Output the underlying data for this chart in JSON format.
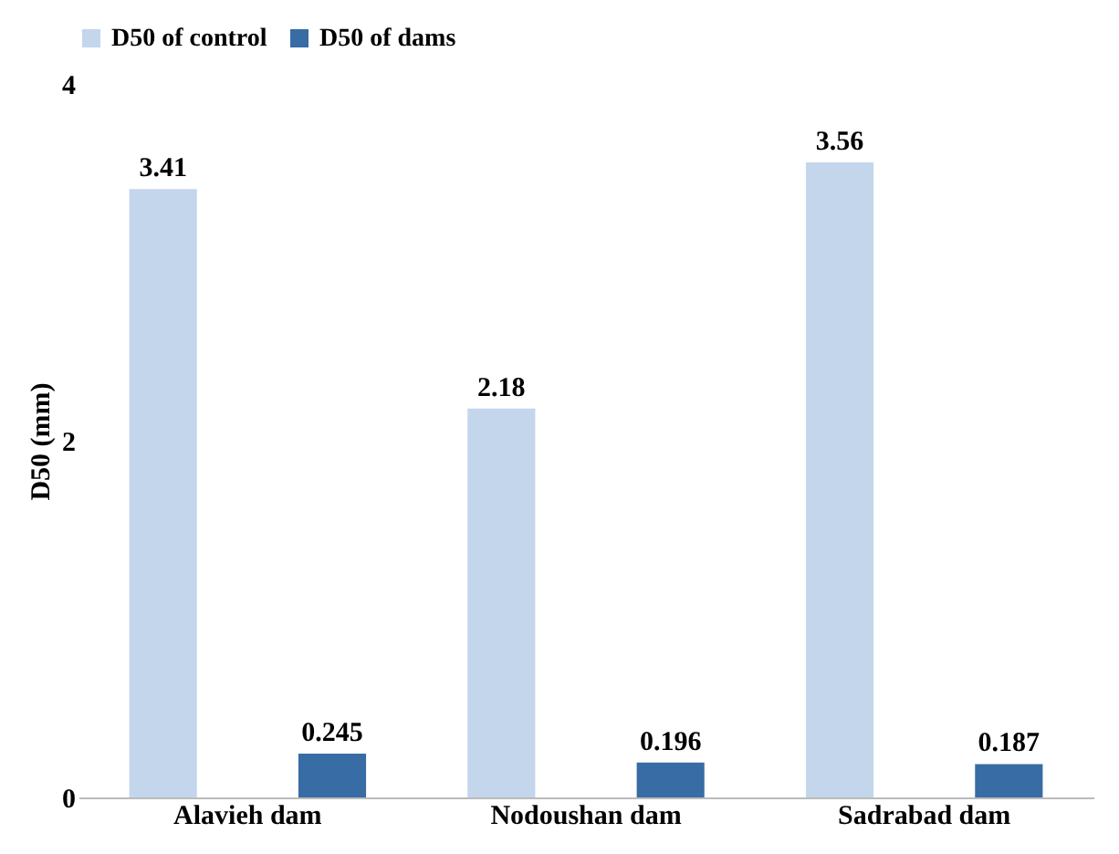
{
  "chart_data": {
    "type": "bar",
    "ylabel": "D50 (mm)",
    "categories": [
      "Alavieh dam",
      "Nodoushan dam",
      "Sadrabad dam"
    ],
    "series": [
      {
        "name": "D50 of control",
        "color": "#c3d6ec",
        "values": [
          3.41,
          2.18,
          3.56
        ]
      },
      {
        "name": "D50 of dams",
        "color": "#386ca4",
        "values": [
          0.245,
          0.196,
          0.187
        ]
      }
    ],
    "ylim": [
      0,
      4
    ],
    "yticks": [
      0,
      2,
      4
    ],
    "data_labels": true,
    "legend": "top",
    "grid": false
  }
}
